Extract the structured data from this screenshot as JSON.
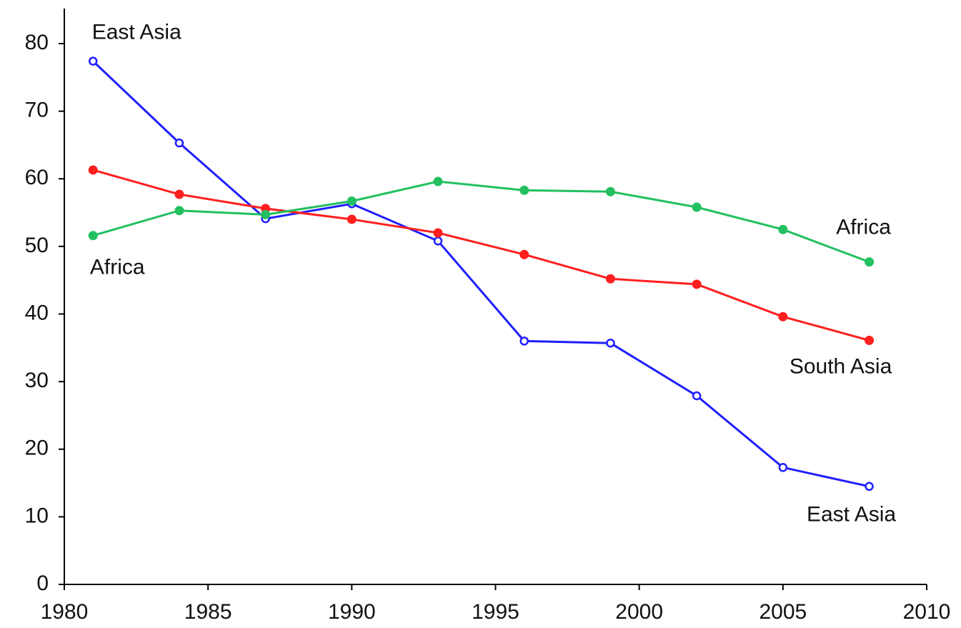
{
  "chart_data": {
    "type": "line",
    "x": [
      1981,
      1984,
      1987,
      1990,
      1993,
      1996,
      1999,
      2002,
      2005,
      2008
    ],
    "series": [
      {
        "name": "East Asia",
        "color": "#1f1fff",
        "marker": "hollow",
        "values": [
          77.4,
          65.3,
          54.1,
          56.3,
          50.8,
          36.0,
          35.7,
          27.9,
          17.3,
          14.5
        ]
      },
      {
        "name": "South Asia",
        "color": "#ff1f1f",
        "marker": "filled",
        "values": [
          61.3,
          57.7,
          55.6,
          54.0,
          52.0,
          48.8,
          45.2,
          44.4,
          39.6,
          36.1
        ]
      },
      {
        "name": "Africa",
        "color": "#22c060",
        "marker": "filled",
        "values": [
          51.6,
          55.3,
          54.7,
          56.7,
          59.6,
          58.3,
          58.1,
          55.8,
          52.5,
          47.7
        ]
      }
    ],
    "xlim": [
      1980,
      2010
    ],
    "xticks": [
      1980,
      1985,
      1990,
      1995,
      2000,
      2005,
      2010
    ],
    "ylim": [
      0,
      80
    ],
    "yticks": [
      0,
      10,
      20,
      30,
      40,
      50,
      60,
      70,
      80
    ],
    "grid": false
  }
}
